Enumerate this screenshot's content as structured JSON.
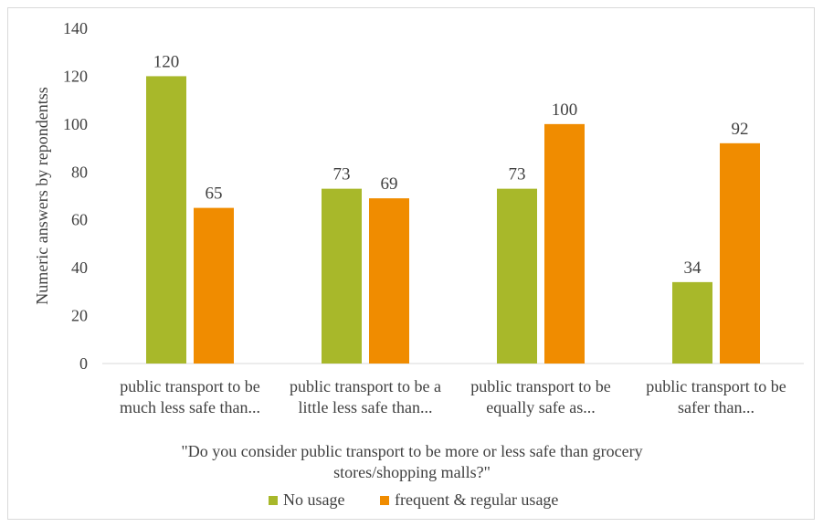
{
  "chart_data": {
    "type": "bar",
    "categories": [
      [
        "public transport to be",
        "much less safe than..."
      ],
      [
        "public transport to be a",
        "little less safe than..."
      ],
      [
        "public transport to be",
        "equally safe as..."
      ],
      [
        "public transport to be",
        "safer than..."
      ]
    ],
    "series": [
      {
        "name": "No usage",
        "color": "#a8b82a",
        "values": [
          120,
          73,
          73,
          34
        ]
      },
      {
        "name": "frequent & regular usage",
        "color": "#f08c00",
        "values": [
          65,
          69,
          100,
          92
        ]
      }
    ],
    "ylabel": "Numeric answers by repondentss",
    "xlabel": [
      "\"Do you consider public transport to be more or less safe than grocery",
      "stores/shopping malls?\""
    ],
    "ylim": [
      0,
      140
    ],
    "yticks": [
      0,
      20,
      40,
      60,
      80,
      100,
      120,
      140
    ],
    "grid": false,
    "legend_position": "bottom"
  }
}
